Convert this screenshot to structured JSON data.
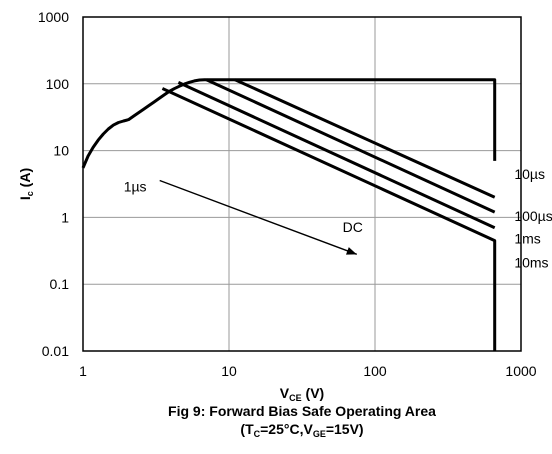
{
  "chart_data": {
    "type": "line",
    "x_scale": "log",
    "y_scale": "log",
    "xlim": [
      1,
      1000
    ],
    "ylim": [
      0.01,
      1000
    ],
    "grid": true,
    "x_ticks": [
      "1",
      "10",
      "100",
      "1000"
    ],
    "y_ticks": [
      "0.01",
      "0.1",
      "1",
      "10",
      "100",
      "1000"
    ],
    "xlabel": {
      "main": "V",
      "sub": "CE",
      "tail": " (V)"
    },
    "ylabel": {
      "main": "I",
      "sub": "c",
      "tail": " (A)"
    },
    "caption_line1": "Fig 9: Forward Bias Safe Operating Area",
    "caption_line2": {
      "open": "(T",
      "sub1": "C",
      "mid": "=25°C,V",
      "sub2": "GE",
      "close": "=15V)"
    },
    "series": [
      {
        "name": "10µs",
        "x": [
          1,
          2,
          4,
          6.8,
          660,
          660
        ],
        "y": [
          5.5,
          28,
          80,
          115,
          115,
          7
        ]
      },
      {
        "name": "100µs",
        "x": [
          11,
          660
        ],
        "y": [
          115,
          2
        ]
      },
      {
        "name": "1ms",
        "x": [
          7,
          660
        ],
        "y": [
          115,
          1.2
        ]
      },
      {
        "name": "10ms",
        "x": [
          4.5,
          660
        ],
        "y": [
          105,
          0.7
        ]
      },
      {
        "name": "DC",
        "x": [
          3.5,
          660,
          660
        ],
        "y": [
          85,
          0.45,
          0.01
        ]
      }
    ],
    "annotations": [
      {
        "text": "1µs",
        "x": 1.9,
        "y": 2.9,
        "arrow_to": [
          75,
          0.28
        ]
      },
      {
        "text": "DC",
        "x": 60,
        "y": 0.72
      },
      {
        "text": "10µs",
        "x": 900,
        "y": 4.5
      },
      {
        "text": "100µs",
        "x": 900,
        "y": 1.05
      },
      {
        "text": "1ms",
        "x": 900,
        "y": 0.48
      },
      {
        "text": "10ms",
        "x": 900,
        "y": 0.21
      }
    ]
  }
}
